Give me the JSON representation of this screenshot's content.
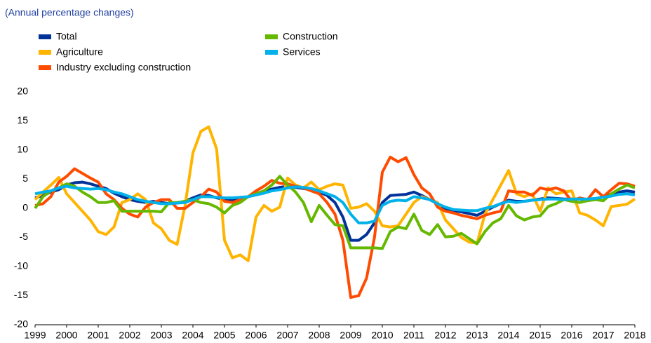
{
  "chart_data": {
    "type": "line",
    "subtitle": "(Annual percentage changes)",
    "x": [
      1999,
      1999.25,
      1999.5,
      1999.75,
      2000,
      2000.25,
      2000.5,
      2000.75,
      2001,
      2001.25,
      2001.5,
      2001.75,
      2002,
      2002.25,
      2002.5,
      2002.75,
      2003,
      2003.25,
      2003.5,
      2003.75,
      2004,
      2004.25,
      2004.5,
      2004.75,
      2005,
      2005.25,
      2005.5,
      2005.75,
      2006,
      2006.25,
      2006.5,
      2006.75,
      2007,
      2007.25,
      2007.5,
      2007.75,
      2008,
      2008.25,
      2008.5,
      2008.75,
      2009,
      2009.25,
      2009.5,
      2009.75,
      2010,
      2010.25,
      2010.5,
      2010.75,
      2011,
      2011.25,
      2011.5,
      2011.75,
      2012,
      2012.25,
      2012.5,
      2012.75,
      2013,
      2013.25,
      2013.5,
      2013.75,
      2014,
      2014.25,
      2014.5,
      2014.75,
      2015,
      2015.25,
      2015.5,
      2015.75,
      2016,
      2016.25,
      2016.5,
      2016.75,
      2017,
      2017.25,
      2017.5,
      2017.75,
      2018
    ],
    "series": [
      {
        "name": "Total",
        "color": "#003299",
        "values": [
          1.8,
          2.2,
          2.8,
          3.2,
          4.0,
          4.4,
          4.5,
          4.2,
          3.8,
          3.4,
          2.6,
          2.0,
          1.5,
          1.2,
          1.0,
          1.2,
          1.0,
          0.8,
          0.9,
          1.2,
          1.8,
          2.3,
          2.2,
          1.8,
          1.5,
          1.4,
          1.6,
          2.0,
          2.5,
          3.0,
          3.3,
          3.6,
          3.8,
          3.6,
          3.4,
          3.2,
          2.8,
          2.2,
          1.0,
          -1.5,
          -5.5,
          -5.5,
          -4.5,
          -2.5,
          1.0,
          2.2,
          2.3,
          2.4,
          2.8,
          2.2,
          1.5,
          0.8,
          -0.2,
          -0.4,
          -0.6,
          -0.9,
          -1.2,
          -0.5,
          0.2,
          0.8,
          1.4,
          1.2,
          1.2,
          1.4,
          1.6,
          1.8,
          1.7,
          1.6,
          1.6,
          1.6,
          1.5,
          1.6,
          2.0,
          2.4,
          2.8,
          3.0,
          2.8
        ]
      },
      {
        "name": "Agriculture",
        "color": "#ffb400",
        "values": [
          1.5,
          2.8,
          4.0,
          5.3,
          2.5,
          1.0,
          -0.5,
          -2.0,
          -4.0,
          -4.5,
          -3.2,
          1.0,
          1.5,
          2.5,
          1.5,
          -2.5,
          -3.5,
          -5.5,
          -6.2,
          0.5,
          9.5,
          13.2,
          14.0,
          10.2,
          -5.5,
          -8.5,
          -8.0,
          -9.0,
          -1.5,
          0.5,
          -0.5,
          0.2,
          5.2,
          4.0,
          3.5,
          4.5,
          3.2,
          3.8,
          4.2,
          4.0,
          0.0,
          0.2,
          0.8,
          -0.5,
          -3.0,
          -3.2,
          -3.0,
          -1.0,
          1.0,
          2.0,
          1.5,
          1.0,
          -2.0,
          -3.5,
          -5.0,
          -5.8,
          -6.0,
          -1.0,
          1.5,
          4.0,
          6.5,
          2.5,
          2.0,
          2.5,
          -0.5,
          3.5,
          2.5,
          2.8,
          3.0,
          -0.8,
          -1.2,
          -2.0,
          -3.0,
          0.3,
          0.5,
          0.7,
          1.6
        ]
      },
      {
        "name": "Industry excluding construction",
        "color": "#ff4b00",
        "values": [
          0.5,
          0.8,
          2.0,
          4.5,
          5.5,
          6.8,
          6.0,
          5.2,
          4.5,
          2.5,
          1.5,
          0.0,
          -1.0,
          -1.5,
          0.2,
          1.0,
          1.5,
          1.5,
          0.0,
          0.0,
          1.0,
          2.0,
          3.3,
          2.8,
          1.2,
          1.0,
          1.5,
          2.0,
          3.0,
          3.8,
          4.8,
          4.3,
          4.2,
          3.8,
          3.5,
          3.0,
          2.5,
          1.0,
          -1.0,
          -5.5,
          -15.3,
          -15.0,
          -12.0,
          -5.0,
          6.2,
          8.8,
          8.0,
          8.7,
          5.8,
          3.5,
          2.5,
          0.2,
          -0.5,
          -0.8,
          -1.2,
          -1.5,
          -1.8,
          -1.2,
          -0.8,
          -0.5,
          3.0,
          2.8,
          2.8,
          2.2,
          3.5,
          3.2,
          3.5,
          3.0,
          1.2,
          1.8,
          1.5,
          3.2,
          2.0,
          3.2,
          4.3,
          4.2,
          3.8
        ]
      },
      {
        "name": "Construction",
        "color": "#65b800",
        "values": [
          0.0,
          2.0,
          3.0,
          3.5,
          4.2,
          3.8,
          2.8,
          2.0,
          1.0,
          1.0,
          1.3,
          -0.5,
          -0.5,
          -0.5,
          -0.5,
          -0.5,
          -0.6,
          1.0,
          1.0,
          1.2,
          1.5,
          1.0,
          0.8,
          0.2,
          -0.8,
          0.5,
          1.0,
          2.0,
          2.5,
          3.0,
          4.0,
          5.5,
          4.0,
          2.8,
          1.0,
          -2.3,
          0.5,
          -1.2,
          -2.8,
          -3.0,
          -6.8,
          -6.8,
          -6.8,
          -6.8,
          -6.9,
          -4.0,
          -3.2,
          -3.5,
          -1.0,
          -3.8,
          -4.5,
          -2.8,
          -4.9,
          -4.8,
          -4.3,
          -5.2,
          -6.1,
          -4.0,
          -2.5,
          -1.8,
          0.5,
          -1.3,
          -2.0,
          -1.5,
          -1.3,
          0.3,
          0.8,
          1.5,
          1.2,
          1.0,
          1.3,
          1.5,
          1.3,
          2.5,
          3.3,
          4.0,
          3.5
        ]
      },
      {
        "name": "Services",
        "color": "#00b1ea",
        "values": [
          2.5,
          2.8,
          3.0,
          3.5,
          3.8,
          3.5,
          3.4,
          3.3,
          3.4,
          3.2,
          2.8,
          2.5,
          2.0,
          1.5,
          1.2,
          1.0,
          0.8,
          0.8,
          0.9,
          1.0,
          1.5,
          2.0,
          2.0,
          1.9,
          1.8,
          1.8,
          1.9,
          2.0,
          2.3,
          2.6,
          3.0,
          3.2,
          3.5,
          3.7,
          3.6,
          3.4,
          3.0,
          2.5,
          2.0,
          1.0,
          -1.0,
          -2.5,
          -2.5,
          -2.2,
          0.5,
          1.2,
          1.4,
          1.3,
          2.0,
          1.8,
          1.5,
          0.8,
          0.2,
          -0.2,
          -0.3,
          -0.4,
          -0.4,
          0.0,
          0.3,
          0.8,
          1.2,
          1.0,
          1.2,
          1.4,
          1.5,
          1.6,
          1.6,
          1.5,
          1.6,
          1.6,
          1.6,
          1.7,
          1.9,
          2.1,
          2.4,
          2.5,
          2.3
        ]
      }
    ],
    "xlim": [
      1999,
      2018
    ],
    "xticks": [
      1999,
      2000,
      2001,
      2002,
      2003,
      2004,
      2005,
      2006,
      2007,
      2008,
      2009,
      2010,
      2011,
      2012,
      2013,
      2014,
      2015,
      2016,
      2017,
      2018
    ],
    "ylim": [
      -20,
      20
    ],
    "yticks": [
      -20,
      -15,
      -10,
      -5,
      0,
      5,
      10,
      15,
      20
    ],
    "grid": false
  }
}
